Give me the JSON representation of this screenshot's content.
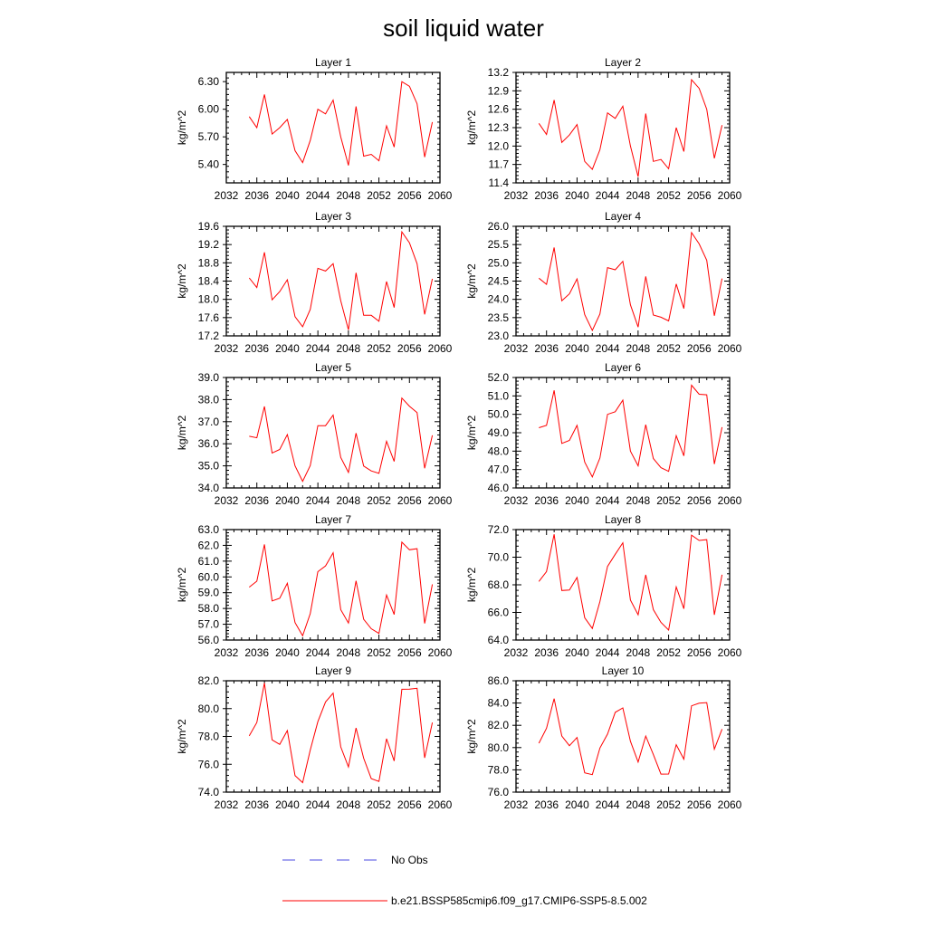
{
  "title": "soil liquid water",
  "legend": {
    "placement": "bottom",
    "entries": [
      {
        "label": "No Obs",
        "color": "#4a4ae0",
        "style": "dashed"
      },
      {
        "label": "b.e21.BSSP585cmip6.f09_g17.CMIP6-SSP5-8.5.002",
        "color": "#ff0000",
        "style": "solid"
      }
    ]
  },
  "chart_data": [
    {
      "type": "line",
      "title": "Layer 1",
      "xlabel": "",
      "ylabel": "kg/m^2",
      "xlim": [
        2032,
        2060
      ],
      "ylim": [
        5.2,
        6.4
      ],
      "xticks": [
        "2032",
        "2036",
        "2040",
        "2044",
        "2048",
        "2052",
        "2056",
        "2060"
      ],
      "yticks": [
        "5.40",
        "5.70",
        "6.00",
        "6.30"
      ],
      "series": [
        {
          "color": "#ff0000",
          "x": [
            2035,
            2036,
            2037,
            2038,
            2039,
            2040,
            2041,
            2042,
            2043,
            2044,
            2045,
            2046,
            2047,
            2048,
            2049,
            2050,
            2051,
            2052,
            2053,
            2054,
            2055,
            2056,
            2057,
            2058,
            2059
          ],
          "y": [
            5.92,
            5.8,
            6.16,
            5.73,
            5.8,
            5.89,
            5.55,
            5.42,
            5.66,
            6.0,
            5.95,
            6.1,
            5.7,
            5.39,
            6.03,
            5.49,
            5.51,
            5.44,
            5.82,
            5.59,
            6.3,
            6.25,
            6.06,
            5.48,
            5.86
          ]
        }
      ]
    },
    {
      "type": "line",
      "title": "Layer 2",
      "xlabel": "",
      "ylabel": "kg/m^2",
      "xlim": [
        2032,
        2060
      ],
      "ylim": [
        11.4,
        13.2
      ],
      "xticks": [
        "2032",
        "2036",
        "2040",
        "2044",
        "2048",
        "2052",
        "2056",
        "2060"
      ],
      "yticks": [
        "11.4",
        "11.7",
        "12.0",
        "12.3",
        "12.6",
        "12.9",
        "13.2"
      ],
      "series": [
        {
          "color": "#ff0000",
          "x": [
            2035,
            2036,
            2037,
            2038,
            2039,
            2040,
            2041,
            2042,
            2043,
            2044,
            2045,
            2046,
            2047,
            2048,
            2049,
            2050,
            2051,
            2052,
            2053,
            2054,
            2055,
            2056,
            2057,
            2058,
            2059
          ],
          "y": [
            12.37,
            12.19,
            12.75,
            12.06,
            12.18,
            12.35,
            11.75,
            11.62,
            11.94,
            12.54,
            12.45,
            12.65,
            12.0,
            11.5,
            12.53,
            11.75,
            11.78,
            11.63,
            12.3,
            11.91,
            13.08,
            12.94,
            12.6,
            11.8,
            12.34
          ]
        }
      ]
    },
    {
      "type": "line",
      "title": "Layer 3",
      "xlabel": "",
      "ylabel": "kg/m^2",
      "xlim": [
        2032,
        2060
      ],
      "ylim": [
        17.2,
        19.6
      ],
      "xticks": [
        "2032",
        "2036",
        "2040",
        "2044",
        "2048",
        "2052",
        "2056",
        "2060"
      ],
      "yticks": [
        "17.2",
        "17.6",
        "18.0",
        "18.4",
        "18.8",
        "19.2",
        "19.6"
      ],
      "series": [
        {
          "color": "#ff0000",
          "x": [
            2035,
            2036,
            2037,
            2038,
            2039,
            2040,
            2041,
            2042,
            2043,
            2044,
            2045,
            2046,
            2047,
            2048,
            2049,
            2050,
            2051,
            2052,
            2053,
            2054,
            2055,
            2056,
            2057,
            2058,
            2059
          ],
          "y": [
            18.47,
            18.26,
            19.03,
            17.99,
            18.17,
            18.43,
            17.62,
            17.4,
            17.78,
            18.68,
            18.62,
            18.78,
            17.97,
            17.33,
            18.58,
            17.65,
            17.65,
            17.52,
            18.39,
            17.82,
            19.48,
            19.24,
            18.78,
            17.67,
            18.45
          ]
        }
      ]
    },
    {
      "type": "line",
      "title": "Layer 4",
      "xlabel": "",
      "ylabel": "kg/m^2",
      "xlim": [
        2032,
        2060
      ],
      "ylim": [
        23.0,
        26.0
      ],
      "xticks": [
        "2032",
        "2036",
        "2040",
        "2044",
        "2048",
        "2052",
        "2056",
        "2060"
      ],
      "yticks": [
        "23.0",
        "23.5",
        "24.0",
        "24.5",
        "25.0",
        "25.5",
        "26.0"
      ],
      "series": [
        {
          "color": "#ff0000",
          "x": [
            2035,
            2036,
            2037,
            2038,
            2039,
            2040,
            2041,
            2042,
            2043,
            2044,
            2045,
            2046,
            2047,
            2048,
            2049,
            2050,
            2051,
            2052,
            2053,
            2054,
            2055,
            2056,
            2057,
            2058,
            2059
          ],
          "y": [
            24.58,
            24.41,
            25.42,
            23.96,
            24.15,
            24.56,
            23.58,
            23.15,
            23.6,
            24.87,
            24.81,
            25.04,
            23.85,
            23.24,
            24.63,
            23.57,
            23.51,
            23.41,
            24.42,
            23.75,
            25.83,
            25.52,
            25.07,
            23.55,
            24.57
          ]
        }
      ]
    },
    {
      "type": "line",
      "title": "Layer 5",
      "xlabel": "",
      "ylabel": "kg/m^2",
      "xlim": [
        2032,
        2060
      ],
      "ylim": [
        34.0,
        39.0
      ],
      "xticks": [
        "2032",
        "2036",
        "2040",
        "2044",
        "2048",
        "2052",
        "2056",
        "2060"
      ],
      "yticks": [
        "34.0",
        "35.0",
        "36.0",
        "37.0",
        "38.0",
        "39.0"
      ],
      "series": [
        {
          "color": "#ff0000",
          "x": [
            2035,
            2036,
            2037,
            2038,
            2039,
            2040,
            2041,
            2042,
            2043,
            2044,
            2045,
            2046,
            2047,
            2048,
            2049,
            2050,
            2051,
            2052,
            2053,
            2054,
            2055,
            2056,
            2057,
            2058,
            2059
          ],
          "y": [
            36.34,
            36.27,
            37.69,
            35.58,
            35.74,
            36.42,
            35.0,
            34.3,
            35.01,
            36.82,
            36.82,
            37.3,
            35.38,
            34.7,
            36.48,
            34.99,
            34.77,
            34.66,
            36.11,
            35.2,
            38.07,
            37.7,
            37.41,
            34.89,
            36.38
          ]
        }
      ]
    },
    {
      "type": "line",
      "title": "Layer 6",
      "xlabel": "",
      "ylabel": "kg/m^2",
      "xlim": [
        2032,
        2060
      ],
      "ylim": [
        46.0,
        52.0
      ],
      "xticks": [
        "2032",
        "2036",
        "2040",
        "2044",
        "2048",
        "2052",
        "2056",
        "2060"
      ],
      "yticks": [
        "46.0",
        "47.0",
        "48.0",
        "49.0",
        "50.0",
        "51.0",
        "52.0"
      ],
      "series": [
        {
          "color": "#ff0000",
          "x": [
            2035,
            2036,
            2037,
            2038,
            2039,
            2040,
            2041,
            2042,
            2043,
            2044,
            2045,
            2046,
            2047,
            2048,
            2049,
            2050,
            2051,
            2052,
            2053,
            2054,
            2055,
            2056,
            2057,
            2058,
            2059
          ],
          "y": [
            49.27,
            49.4,
            51.3,
            48.42,
            48.58,
            49.4,
            47.4,
            46.6,
            47.63,
            50.0,
            50.14,
            50.77,
            48.0,
            47.2,
            49.44,
            47.6,
            47.1,
            46.9,
            48.84,
            47.74,
            51.58,
            51.09,
            51.06,
            47.3,
            49.3
          ]
        }
      ]
    },
    {
      "type": "line",
      "title": "Layer 7",
      "xlabel": "",
      "ylabel": "kg/m^2",
      "xlim": [
        2032,
        2060
      ],
      "ylim": [
        56.0,
        63.0
      ],
      "xticks": [
        "2032",
        "2036",
        "2040",
        "2044",
        "2048",
        "2052",
        "2056",
        "2060"
      ],
      "yticks": [
        "56.0",
        "57.0",
        "58.0",
        "59.0",
        "60.0",
        "61.0",
        "62.0",
        "63.0"
      ],
      "series": [
        {
          "color": "#ff0000",
          "x": [
            2035,
            2036,
            2037,
            2038,
            2039,
            2040,
            2041,
            2042,
            2043,
            2044,
            2045,
            2046,
            2047,
            2048,
            2049,
            2050,
            2051,
            2052,
            2053,
            2054,
            2055,
            2056,
            2057,
            2058,
            2059
          ],
          "y": [
            59.35,
            59.73,
            62.06,
            58.48,
            58.65,
            59.6,
            57.11,
            56.27,
            57.67,
            60.33,
            60.7,
            61.53,
            57.92,
            57.08,
            59.75,
            57.32,
            56.72,
            56.42,
            58.85,
            57.62,
            62.2,
            61.72,
            61.79,
            57.05,
            59.53
          ]
        }
      ]
    },
    {
      "type": "line",
      "title": "Layer 8",
      "xlabel": "",
      "ylabel": "kg/m^2",
      "xlim": [
        2032,
        2060
      ],
      "ylim": [
        64.0,
        72.0
      ],
      "xticks": [
        "2032",
        "2036",
        "2040",
        "2044",
        "2048",
        "2052",
        "2056",
        "2060"
      ],
      "yticks": [
        "64.0",
        "66.0",
        "68.0",
        "70.0",
        "72.0"
      ],
      "series": [
        {
          "color": "#ff0000",
          "x": [
            2035,
            2036,
            2037,
            2038,
            2039,
            2040,
            2041,
            2042,
            2043,
            2044,
            2045,
            2046,
            2047,
            2048,
            2049,
            2050,
            2051,
            2052,
            2053,
            2054,
            2055,
            2056,
            2057,
            2058,
            2059
          ],
          "y": [
            68.24,
            68.96,
            71.66,
            67.59,
            67.62,
            68.53,
            65.61,
            64.84,
            66.79,
            69.33,
            70.21,
            71.04,
            66.9,
            65.83,
            68.72,
            66.2,
            65.28,
            64.72,
            67.85,
            66.27,
            71.6,
            71.21,
            71.27,
            65.82,
            68.73
          ]
        }
      ]
    },
    {
      "type": "line",
      "title": "Layer 9",
      "xlabel": "",
      "ylabel": "kg/m^2",
      "xlim": [
        2032,
        2060
      ],
      "ylim": [
        74.0,
        82.0
      ],
      "xticks": [
        "2032",
        "2036",
        "2040",
        "2044",
        "2048",
        "2052",
        "2056",
        "2060"
      ],
      "yticks": [
        "74.0",
        "76.0",
        "78.0",
        "80.0",
        "82.0"
      ],
      "series": [
        {
          "color": "#ff0000",
          "x": [
            2035,
            2036,
            2037,
            2038,
            2039,
            2040,
            2041,
            2042,
            2043,
            2044,
            2045,
            2046,
            2047,
            2048,
            2049,
            2050,
            2051,
            2052,
            2053,
            2054,
            2055,
            2056,
            2057,
            2058,
            2059
          ],
          "y": [
            78.04,
            79.0,
            81.84,
            77.75,
            77.43,
            78.42,
            75.19,
            74.68,
            77.02,
            79.06,
            80.48,
            81.11,
            77.25,
            75.81,
            78.61,
            76.44,
            74.97,
            74.77,
            77.84,
            76.24,
            81.39,
            81.4,
            81.46,
            76.46,
            79.0
          ]
        }
      ]
    },
    {
      "type": "line",
      "title": "Layer 10",
      "xlabel": "",
      "ylabel": "kg/m^2",
      "xlim": [
        2032,
        2060
      ],
      "ylim": [
        76.0,
        86.0
      ],
      "xticks": [
        "2032",
        "2036",
        "2040",
        "2044",
        "2048",
        "2052",
        "2056",
        "2060"
      ],
      "yticks": [
        "76.0",
        "78.0",
        "80.0",
        "82.0",
        "84.0",
        "86.0"
      ],
      "series": [
        {
          "color": "#ff0000",
          "x": [
            2035,
            2036,
            2037,
            2038,
            2039,
            2040,
            2041,
            2042,
            2043,
            2044,
            2045,
            2046,
            2047,
            2048,
            2049,
            2050,
            2051,
            2052,
            2053,
            2054,
            2055,
            2056,
            2057,
            2058,
            2059
          ],
          "y": [
            80.39,
            81.73,
            84.4,
            81.04,
            80.17,
            80.9,
            77.73,
            77.57,
            79.96,
            81.21,
            83.16,
            83.56,
            80.57,
            78.7,
            81.03,
            79.38,
            77.62,
            77.63,
            80.26,
            78.96,
            83.75,
            83.98,
            84.04,
            79.85,
            81.66
          ]
        }
      ]
    }
  ]
}
